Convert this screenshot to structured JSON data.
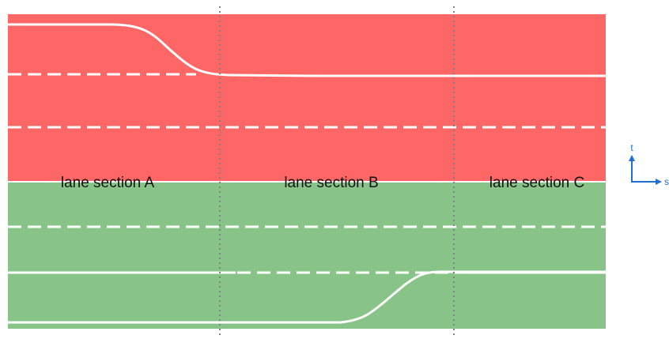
{
  "diagram": {
    "sections": [
      {
        "label": "lane section A"
      },
      {
        "label": "lane section B"
      },
      {
        "label": "lane section C"
      }
    ],
    "axes": {
      "t_label": "t",
      "s_label": "s"
    },
    "colors": {
      "upper_lanes": "#ff6666",
      "lower_lanes": "#88c488",
      "lane_marking": "#ffffff",
      "section_boundary": "#808080",
      "axis": "#1f6fd1",
      "text": "#111111"
    }
  }
}
